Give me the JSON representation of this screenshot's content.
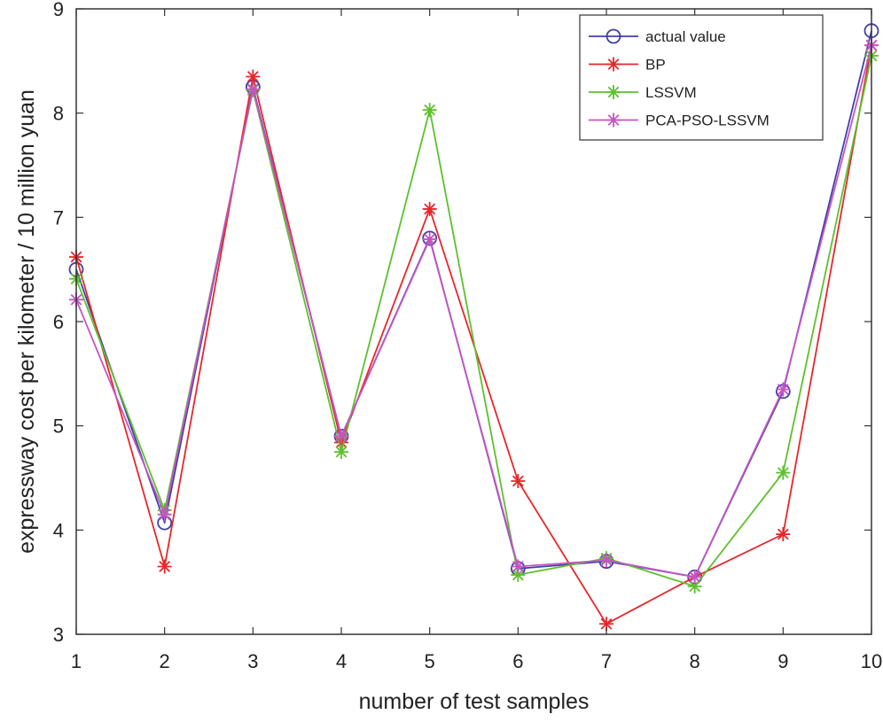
{
  "chart_data": {
    "type": "line",
    "title": "",
    "xlabel": "number of test samples",
    "ylabel": "expressway cost per kilometer / 10 million yuan",
    "x": [
      1,
      2,
      3,
      4,
      5,
      6,
      7,
      8,
      9,
      10
    ],
    "xlim": [
      1,
      10
    ],
    "ylim": [
      3,
      9
    ],
    "xticks": [
      "1",
      "2",
      "3",
      "4",
      "5",
      "6",
      "7",
      "8",
      "9",
      "10"
    ],
    "yticks": [
      "3",
      "4",
      "5",
      "6",
      "7",
      "8",
      "9"
    ],
    "grid": false,
    "legend_position": "top-right",
    "series": [
      {
        "name": "actual value",
        "color": "#3f3fa8",
        "marker": "circle",
        "values": [
          6.5,
          4.07,
          8.25,
          4.9,
          6.8,
          3.63,
          3.7,
          3.55,
          5.33,
          8.79
        ]
      },
      {
        "name": "BP",
        "color": "#e8262b",
        "marker": "asterisk",
        "values": [
          6.62,
          3.65,
          8.35,
          4.84,
          7.08,
          4.47,
          3.1,
          3.55,
          3.96,
          8.65
        ]
      },
      {
        "name": "LSSVM",
        "color": "#5cc12c",
        "marker": "asterisk",
        "values": [
          6.41,
          4.19,
          8.22,
          4.75,
          8.03,
          3.57,
          3.73,
          3.46,
          4.55,
          8.55
        ]
      },
      {
        "name": "PCA-PSO-LSSVM",
        "color": "#c455c4",
        "marker": "asterisk",
        "values": [
          6.21,
          4.15,
          8.23,
          4.9,
          6.79,
          3.65,
          3.71,
          3.55,
          5.35,
          8.65
        ]
      }
    ]
  }
}
